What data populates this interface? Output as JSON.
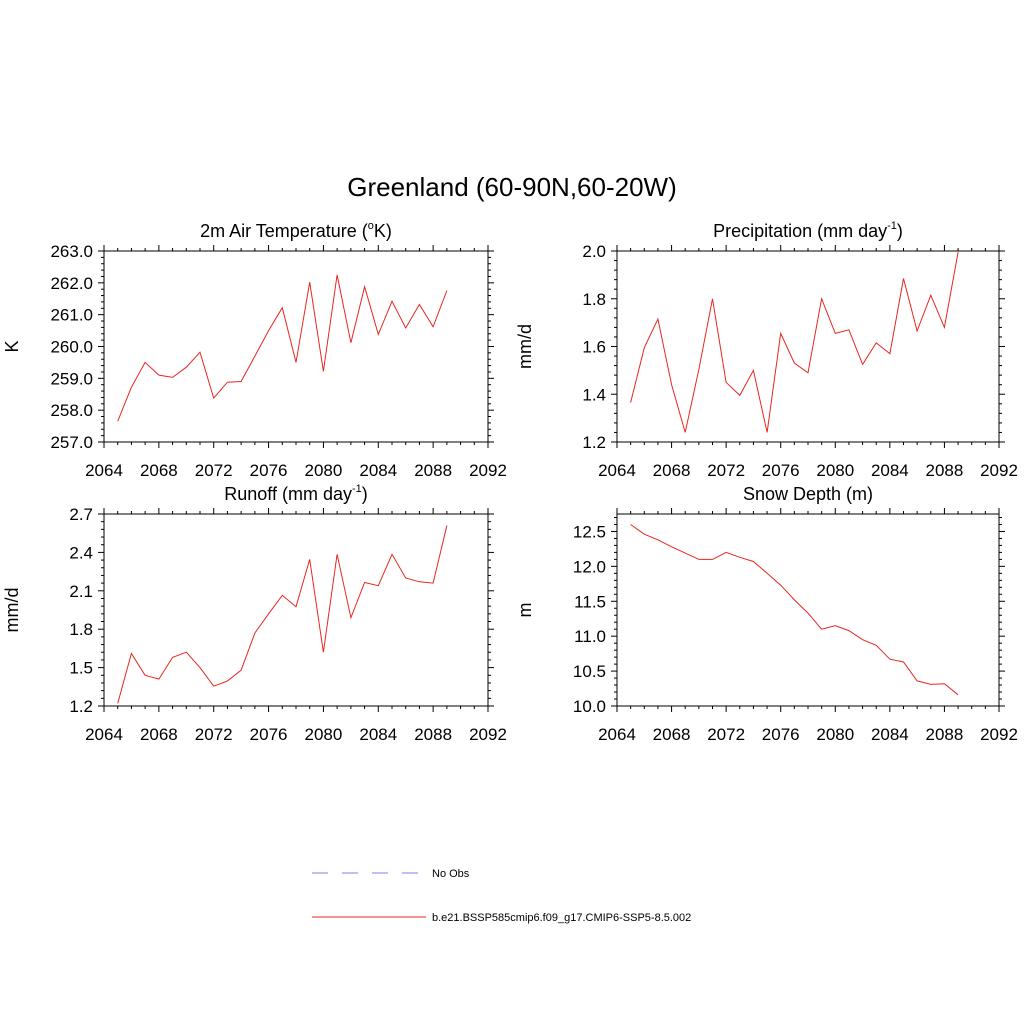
{
  "figure": {
    "title": "Greenland (60-90N,60-20W)"
  },
  "chart_data": [
    {
      "type": "line",
      "title": "2m Air Temperature (",
      "title_sup": "o",
      "title_suffix": "K)",
      "xlabel": "",
      "ylabel": "K",
      "xlim": [
        2064,
        2092
      ],
      "ylim": [
        257.0,
        263.0
      ],
      "xticks": [
        2064,
        2068,
        2072,
        2076,
        2080,
        2084,
        2088,
        2092
      ],
      "xtick_labels": [
        "2064",
        "2068",
        "2072",
        "2076",
        "2080",
        "2084",
        "2088",
        "2092"
      ],
      "yticks": [
        257.0,
        258.0,
        259.0,
        260.0,
        261.0,
        262.0,
        263.0
      ],
      "ytick_labels": [
        "257.0",
        "258.0",
        "259.0",
        "260.0",
        "261.0",
        "262.0",
        "263.0"
      ],
      "series": [
        {
          "color": "#e8261f",
          "x": [
            2065,
            2066,
            2067,
            2068,
            2069,
            2070,
            2071,
            2072,
            2073,
            2074,
            2075,
            2076,
            2077,
            2078,
            2079,
            2080,
            2081,
            2082,
            2083,
            2084,
            2085,
            2086,
            2087,
            2088,
            2089
          ],
          "y": [
            257.65,
            258.72,
            259.5,
            259.1,
            259.03,
            259.35,
            259.82,
            258.38,
            258.88,
            258.9,
            259.7,
            260.5,
            261.22,
            259.5,
            262.02,
            259.22,
            262.25,
            260.12,
            261.88,
            260.38,
            261.42,
            260.58,
            261.32,
            260.62,
            261.76
          ]
        }
      ]
    },
    {
      "type": "line",
      "title": "Precipitation (mm day",
      "title_sup": "-1",
      "title_suffix": ")",
      "xlabel": "",
      "ylabel": "mm/d",
      "xlim": [
        2064,
        2092
      ],
      "ylim": [
        1.2,
        2.0
      ],
      "xticks": [
        2064,
        2068,
        2072,
        2076,
        2080,
        2084,
        2088,
        2092
      ],
      "xtick_labels": [
        "2064",
        "2068",
        "2072",
        "2076",
        "2080",
        "2084",
        "2088",
        "2092"
      ],
      "yticks": [
        1.2,
        1.4,
        1.6,
        1.8,
        2.0
      ],
      "ytick_labels": [
        "1.2",
        "1.4",
        "1.6",
        "1.8",
        "2.0"
      ],
      "series": [
        {
          "color": "#e8261f",
          "x": [
            2065,
            2066,
            2067,
            2068,
            2069,
            2070,
            2071,
            2072,
            2073,
            2074,
            2075,
            2076,
            2077,
            2078,
            2079,
            2080,
            2081,
            2082,
            2083,
            2084,
            2085,
            2086,
            2087,
            2088,
            2089
          ],
          "y": [
            1.365,
            1.595,
            1.715,
            1.44,
            1.24,
            1.505,
            1.8,
            1.45,
            1.395,
            1.5,
            1.24,
            1.655,
            1.53,
            1.49,
            1.8,
            1.655,
            1.67,
            1.525,
            1.615,
            1.57,
            1.885,
            1.665,
            1.815,
            1.68,
            1.995
          ]
        }
      ]
    },
    {
      "type": "line",
      "title": "Runoff (mm day",
      "title_sup": "-1",
      "title_suffix": ")",
      "xlabel": "",
      "ylabel": "mm/d",
      "xlim": [
        2064,
        2092
      ],
      "ylim": [
        1.2,
        2.7
      ],
      "xticks": [
        2064,
        2068,
        2072,
        2076,
        2080,
        2084,
        2088,
        2092
      ],
      "xtick_labels": [
        "2064",
        "2068",
        "2072",
        "2076",
        "2080",
        "2084",
        "2088",
        "2092"
      ],
      "yticks": [
        1.2,
        1.5,
        1.8,
        2.1,
        2.4,
        2.7
      ],
      "ytick_labels": [
        "1.2",
        "1.5",
        "1.8",
        "2.1",
        "2.4",
        "2.7"
      ],
      "series": [
        {
          "color": "#e8261f",
          "x": [
            2065,
            2066,
            2067,
            2068,
            2069,
            2070,
            2071,
            2072,
            2073,
            2074,
            2075,
            2076,
            2077,
            2078,
            2079,
            2080,
            2081,
            2082,
            2083,
            2084,
            2085,
            2086,
            2087,
            2088,
            2089
          ],
          "y": [
            1.22,
            1.61,
            1.44,
            1.41,
            1.58,
            1.62,
            1.5,
            1.355,
            1.395,
            1.48,
            1.77,
            1.92,
            2.065,
            1.975,
            2.345,
            1.62,
            2.385,
            1.89,
            2.165,
            2.14,
            2.385,
            2.2,
            2.17,
            2.16,
            2.61
          ]
        }
      ]
    },
    {
      "type": "line",
      "title": "Snow Depth (m)",
      "title_sup": "",
      "title_suffix": "",
      "xlabel": "",
      "ylabel": "m",
      "xlim": [
        2064,
        2092
      ],
      "ylim": [
        10.0,
        12.75
      ],
      "xticks": [
        2064,
        2068,
        2072,
        2076,
        2080,
        2084,
        2088,
        2092
      ],
      "xtick_labels": [
        "2064",
        "2068",
        "2072",
        "2076",
        "2080",
        "2084",
        "2088",
        "2092"
      ],
      "yticks": [
        10.0,
        10.5,
        11.0,
        11.5,
        12.0,
        12.5
      ],
      "ytick_labels": [
        "10.0",
        "10.5",
        "11.0",
        "11.5",
        "12.0",
        "12.5"
      ],
      "series": [
        {
          "color": "#e8261f",
          "x": [
            2065,
            2066,
            2067,
            2068,
            2069,
            2070,
            2071,
            2072,
            2073,
            2074,
            2075,
            2076,
            2077,
            2078,
            2079,
            2080,
            2081,
            2082,
            2083,
            2084,
            2085,
            2086,
            2087,
            2088,
            2089
          ],
          "y": [
            12.6,
            12.46,
            12.38,
            12.28,
            12.19,
            12.1,
            12.1,
            12.2,
            12.13,
            12.07,
            11.9,
            11.73,
            11.52,
            11.33,
            11.1,
            11.15,
            11.08,
            10.95,
            10.87,
            10.67,
            10.63,
            10.36,
            10.31,
            10.32,
            10.16
          ]
        }
      ]
    }
  ],
  "legend": {
    "items": [
      {
        "label": "No Obs",
        "color": "#9999ee",
        "dash": "dashed"
      },
      {
        "label": "b.e21.BSSP585cmip6.f09_g17.CMIP6-SSP5-8.5.002",
        "color": "#e8261f",
        "dash": "solid"
      }
    ]
  }
}
